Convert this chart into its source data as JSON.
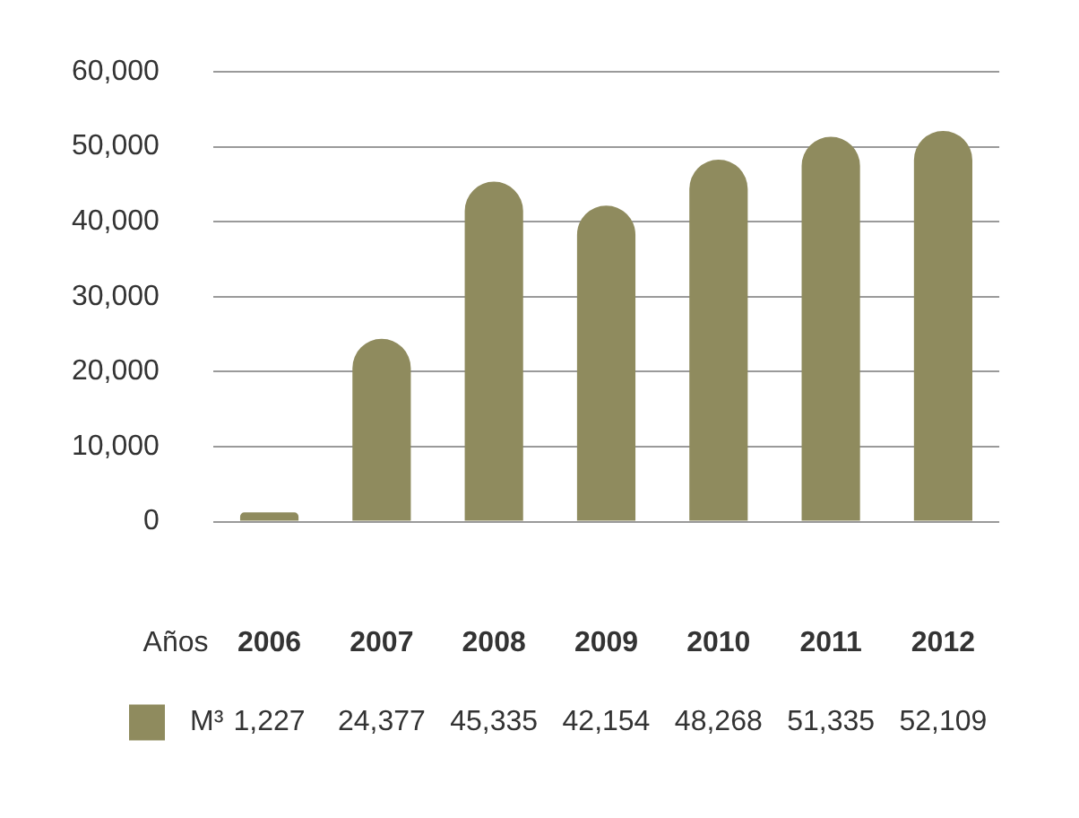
{
  "chart_data": {
    "type": "bar",
    "xlabel": "Años",
    "categories": [
      "2006",
      "2007",
      "2008",
      "2009",
      "2010",
      "2011",
      "2012"
    ],
    "series": [
      {
        "name": "M³",
        "color": "#8f8b5e",
        "values": [
          1227,
          24377,
          45335,
          42154,
          48268,
          51335,
          52109
        ],
        "value_labels": [
          "1,227",
          "24,377",
          "45,335",
          "42,154",
          "48,268",
          "51,335",
          "52,109"
        ]
      }
    ],
    "ylim": [
      0,
      60000
    ],
    "yticks": [
      {
        "value": 0,
        "label": "0"
      },
      {
        "value": 10000,
        "label": "10,000"
      },
      {
        "value": 20000,
        "label": "20,000"
      },
      {
        "value": 30000,
        "label": "30,000"
      },
      {
        "value": 40000,
        "label": "40,000"
      },
      {
        "value": 50000,
        "label": "50,000"
      },
      {
        "value": 60000,
        "label": "60,000"
      }
    ],
    "grid": "y"
  }
}
